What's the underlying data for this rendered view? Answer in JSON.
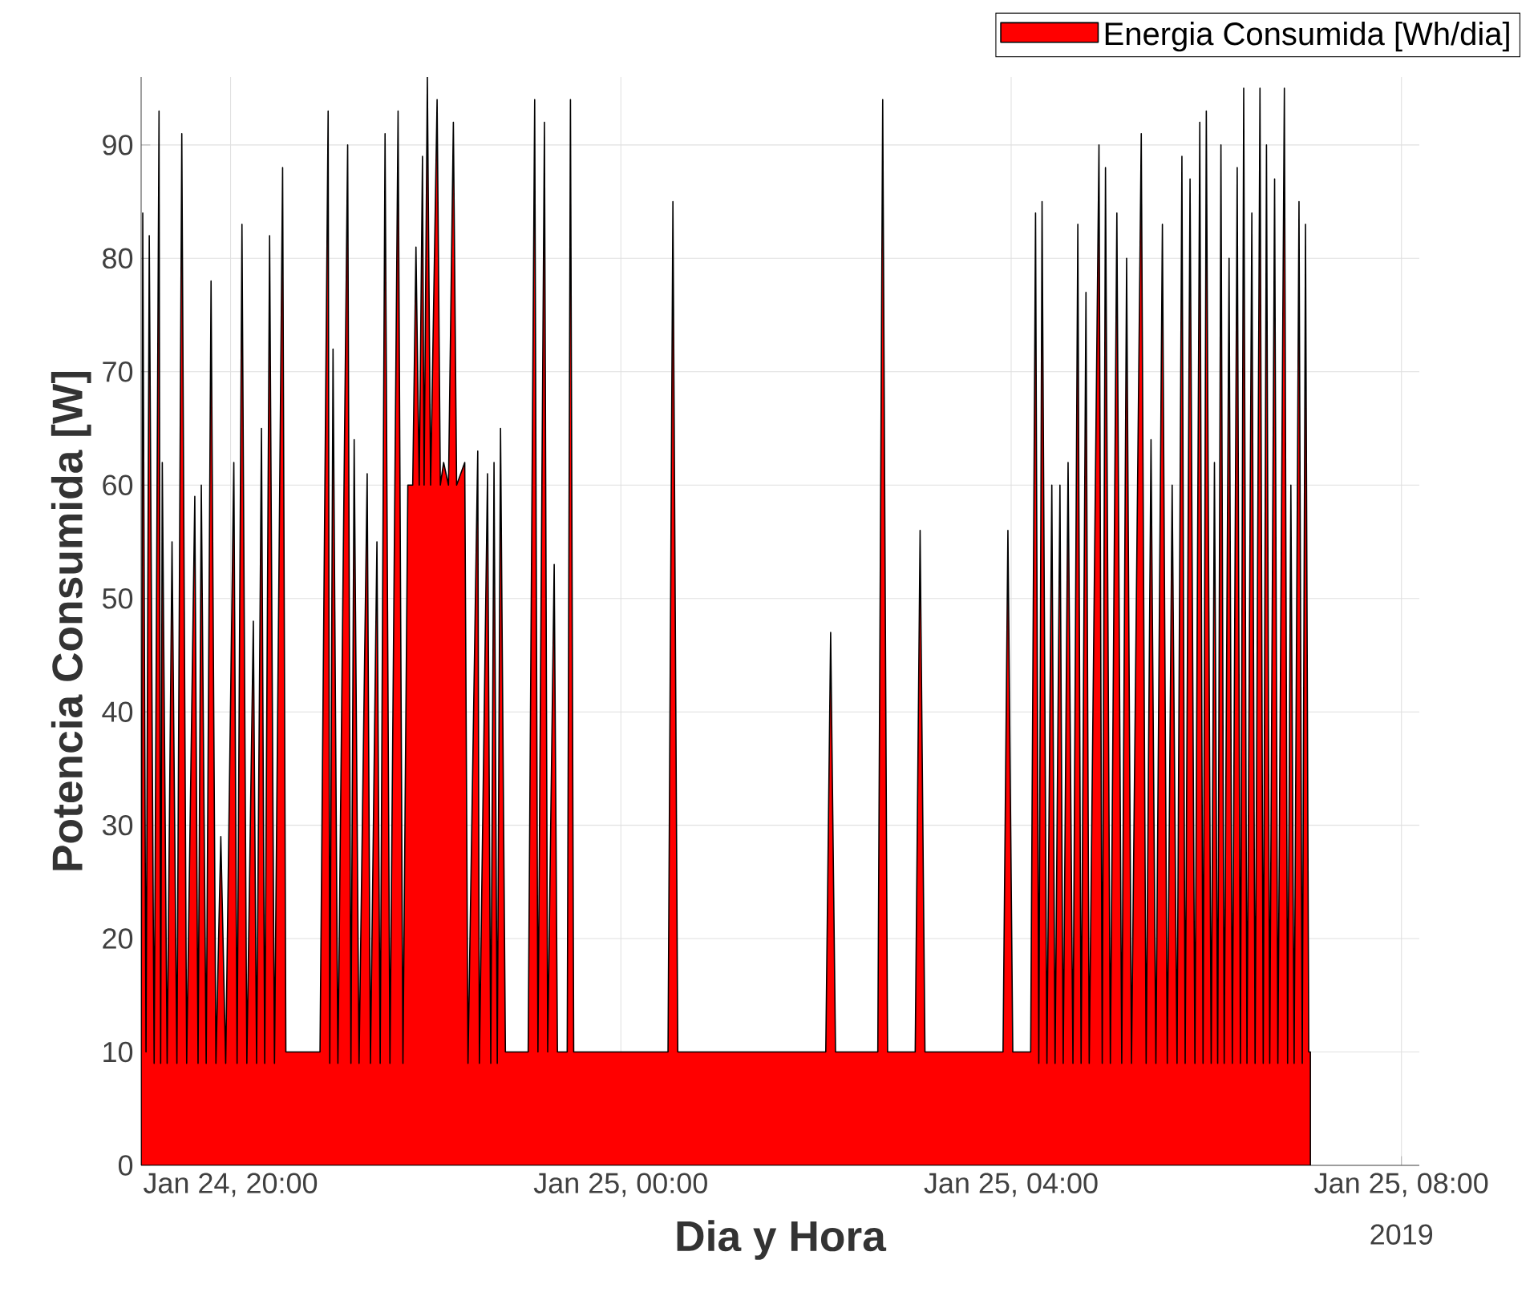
{
  "chart_data": {
    "type": "area",
    "xlabel": "Dia y Hora",
    "ylabel": "Potencia Consumida [W]",
    "xlim": [
      "2019-01-24T19:05",
      "2019-01-25T08:11"
    ],
    "ylim": [
      0,
      96
    ],
    "xticks": [
      {
        "value": "2019-01-24T20:00",
        "label": "Jan 24, 20:00"
      },
      {
        "value": "2019-01-25T00:00",
        "label": "Jan 25, 00:00"
      },
      {
        "value": "2019-01-25T04:00",
        "label": "Jan 25, 04:00"
      },
      {
        "value": "2019-01-25T08:00",
        "label": "Jan 25, 08:00"
      }
    ],
    "yticks": [
      0,
      10,
      20,
      30,
      40,
      50,
      60,
      70,
      80,
      90
    ],
    "grid": true,
    "legend": "top right",
    "annotations": [
      "2019"
    ],
    "x": [
      "2019-01-24T19:05",
      "2019-01-24T19:06",
      "2019-01-24T19:08",
      "2019-01-24T19:10",
      "2019-01-24T19:13",
      "2019-01-24T19:16",
      "2019-01-24T19:17",
      "2019-01-24T19:18",
      "2019-01-24T19:21",
      "2019-01-24T19:24",
      "2019-01-24T19:27",
      "2019-01-24T19:30",
      "2019-01-24T19:33",
      "2019-01-24T19:38",
      "2019-01-24T19:40",
      "2019-01-24T19:42",
      "2019-01-24T19:45",
      "2019-01-24T19:48",
      "2019-01-24T19:51",
      "2019-01-24T19:54",
      "2019-01-24T19:57",
      "2019-01-24T20:02",
      "2019-01-24T20:04",
      "2019-01-24T20:07",
      "2019-01-24T20:10",
      "2019-01-24T20:14",
      "2019-01-24T20:16",
      "2019-01-24T20:19",
      "2019-01-24T20:21",
      "2019-01-24T20:24",
      "2019-01-24T20:27",
      "2019-01-24T20:32",
      "2019-01-24T20:34",
      "2019-01-24T20:55",
      "2019-01-24T21:00",
      "2019-01-24T21:01",
      "2019-01-24T21:03",
      "2019-01-24T21:06",
      "2019-01-24T21:12",
      "2019-01-24T21:14",
      "2019-01-24T21:16",
      "2019-01-24T21:19",
      "2019-01-24T21:24",
      "2019-01-24T21:26",
      "2019-01-24T21:30",
      "2019-01-24T21:32",
      "2019-01-24T21:35",
      "2019-01-24T21:38",
      "2019-01-24T21:43",
      "2019-01-24T21:46",
      "2019-01-24T21:49",
      "2019-01-24T21:52",
      "2019-01-24T21:54",
      "2019-01-24T21:56",
      "2019-01-24T21:58",
      "2019-01-24T21:59",
      "2019-01-24T22:01",
      "2019-01-24T22:03",
      "2019-01-24T22:07",
      "2019-01-24T22:09",
      "2019-01-24T22:11",
      "2019-01-24T22:14",
      "2019-01-24T22:17",
      "2019-01-24T22:19",
      "2019-01-24T22:24",
      "2019-01-24T22:26",
      "2019-01-24T22:32",
      "2019-01-24T22:33",
      "2019-01-24T22:38",
      "2019-01-24T22:40",
      "2019-01-24T22:42",
      "2019-01-24T22:44",
      "2019-01-24T22:46",
      "2019-01-24T22:49",
      "2019-01-24T23:03",
      "2019-01-24T23:07",
      "2019-01-24T23:09",
      "2019-01-24T23:13",
      "2019-01-24T23:15",
      "2019-01-24T23:19",
      "2019-01-24T23:21",
      "2019-01-24T23:27",
      "2019-01-24T23:29",
      "2019-01-24T23:31",
      "2019-01-25T00:29",
      "2019-01-25T00:32",
      "2019-01-25T00:35",
      "2019-01-25T02:06",
      "2019-01-25T02:09",
      "2019-01-25T02:12",
      "2019-01-25T02:38",
      "2019-01-25T02:41",
      "2019-01-25T02:44",
      "2019-01-25T03:01",
      "2019-01-25T03:04",
      "2019-01-25T03:07",
      "2019-01-25T03:55",
      "2019-01-25T03:58",
      "2019-01-25T04:01",
      "2019-01-25T04:12",
      "2019-01-25T04:15",
      "2019-01-25T04:17",
      "2019-01-25T04:19",
      "2019-01-25T04:22",
      "2019-01-25T04:25",
      "2019-01-25T04:27",
      "2019-01-25T04:30",
      "2019-01-25T04:32",
      "2019-01-25T04:35",
      "2019-01-25T04:38",
      "2019-01-25T04:41",
      "2019-01-25T04:43",
      "2019-01-25T04:46",
      "2019-01-25T04:48",
      "2019-01-25T04:54",
      "2019-01-25T04:56",
      "2019-01-25T04:58",
      "2019-01-25T05:01",
      "2019-01-25T05:05",
      "2019-01-25T05:08",
      "2019-01-25T05:11",
      "2019-01-25T05:14",
      "2019-01-25T05:20",
      "2019-01-25T05:23",
      "2019-01-25T05:26",
      "2019-01-25T05:29",
      "2019-01-25T05:33",
      "2019-01-25T05:36",
      "2019-01-25T05:39",
      "2019-01-25T05:42",
      "2019-01-25T05:45",
      "2019-01-25T05:47",
      "2019-01-25T05:50",
      "2019-01-25T05:53",
      "2019-01-25T05:56",
      "2019-01-25T05:58",
      "2019-01-25T06:00",
      "2019-01-25T06:03",
      "2019-01-25T06:05",
      "2019-01-25T06:07",
      "2019-01-25T06:09",
      "2019-01-25T06:11",
      "2019-01-25T06:14",
      "2019-01-25T06:16",
      "2019-01-25T06:19",
      "2019-01-25T06:21",
      "2019-01-25T06:23",
      "2019-01-25T06:25",
      "2019-01-25T06:28",
      "2019-01-25T06:30",
      "2019-01-25T06:33",
      "2019-01-25T06:35",
      "2019-01-25T06:37",
      "2019-01-25T06:39",
      "2019-01-25T06:42",
      "2019-01-25T06:44",
      "2019-01-25T06:48",
      "2019-01-25T06:50",
      "2019-01-25T06:52",
      "2019-01-25T06:54",
      "2019-01-25T06:57",
      "2019-01-25T06:59",
      "2019-01-25T07:01",
      "2019-01-25T07:03",
      "2019-01-25T07:04"
    ],
    "series": [
      {
        "name": "Energia Consumida [Wh/dia]",
        "color": "#ff0000",
        "values": [
          10,
          84,
          10,
          82,
          9,
          93,
          9,
          62,
          9,
          55,
          9,
          91,
          9,
          59,
          9,
          60,
          9,
          78,
          9,
          29,
          9,
          62,
          9,
          83,
          9,
          48,
          9,
          65,
          9,
          82,
          9,
          88,
          10,
          10,
          93,
          9,
          72,
          9,
          90,
          9,
          64,
          9,
          61,
          9,
          55,
          9,
          91,
          9,
          93,
          9,
          60,
          60,
          81,
          60,
          89,
          60,
          96,
          60,
          94,
          60,
          62,
          60,
          92,
          60,
          62,
          9,
          63,
          9,
          61,
          9,
          62,
          9,
          65,
          10,
          10,
          94,
          10,
          92,
          10,
          53,
          10,
          10,
          94,
          10,
          10,
          85,
          10,
          10,
          47,
          10,
          10,
          94,
          10,
          10,
          56,
          10,
          10,
          56,
          10,
          10,
          84,
          9,
          85,
          9,
          60,
          9,
          60,
          9,
          62,
          9,
          83,
          9,
          77,
          9,
          90,
          9,
          88,
          9,
          84,
          9,
          80,
          9,
          91,
          9,
          64,
          9,
          83,
          9,
          60,
          9,
          89,
          9,
          87,
          9,
          92,
          9,
          93,
          9,
          62,
          9,
          90,
          9,
          80,
          9,
          88,
          9,
          95,
          9,
          84,
          9,
          95,
          9,
          90,
          9,
          87,
          9,
          95,
          9,
          60,
          9,
          85,
          9,
          83,
          10,
          10
        ]
      }
    ]
  }
}
